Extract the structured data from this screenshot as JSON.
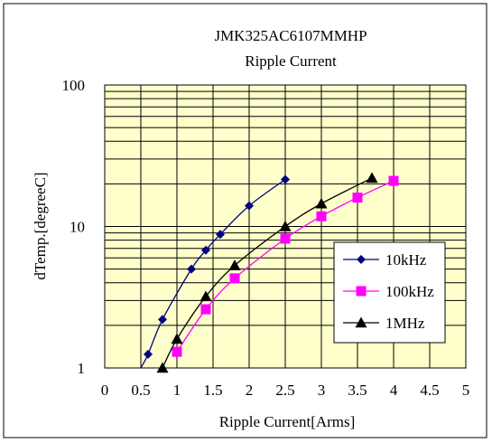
{
  "chart_data": {
    "type": "line",
    "title": "JMK325AC6107MMHP",
    "subtitle": "Ripple Current",
    "xlabel": "Ripple Current[Arms]",
    "ylabel": "dTemp.[degreeC]",
    "xlim": [
      0,
      5
    ],
    "ylim": [
      1,
      100
    ],
    "y_scale": "log",
    "x_ticks": [
      "0",
      "0.5",
      "1",
      "1.5",
      "2",
      "2.5",
      "3",
      "3.5",
      "4",
      "4.5",
      "5"
    ],
    "y_ticks": [
      "1",
      "10",
      "100"
    ],
    "grid": true,
    "legend_position": "lower-right",
    "plot_background": "#ffffcc",
    "series": [
      {
        "name": "10kHz",
        "color": "#000080",
        "marker": "diamond",
        "x": [
          0.5,
          0.6,
          0.8,
          1.2,
          1.4,
          1.6,
          2.0,
          2.5
        ],
        "y": [
          1.0,
          1.25,
          2.2,
          5.0,
          6.8,
          8.8,
          14,
          21.5
        ]
      },
      {
        "name": "100kHz",
        "color": "#ff00ff",
        "marker": "square",
        "x": [
          1.0,
          1.4,
          1.8,
          2.5,
          3.0,
          3.5,
          4.0
        ],
        "y": [
          1.3,
          2.6,
          4.3,
          8.2,
          11.8,
          16,
          21
        ]
      },
      {
        "name": "1MHz",
        "color": "#000000",
        "marker": "triangle",
        "x": [
          0.8,
          1.0,
          1.4,
          1.8,
          2.5,
          3.0,
          3.7
        ],
        "y": [
          1.0,
          1.6,
          3.2,
          5.3,
          10,
          14.5,
          22
        ]
      }
    ]
  }
}
